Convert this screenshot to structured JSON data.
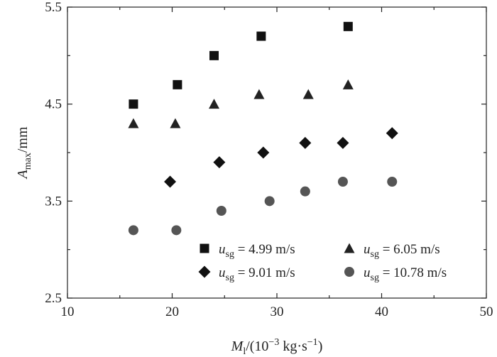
{
  "chart_data": {
    "type": "scatter",
    "title": "",
    "xlabel": {
      "main": "M",
      "sub": "l",
      "unit_open": "/(10",
      "unit_exp": "−3",
      "unit_mid": " kg·s",
      "unit_exp2": "−1",
      "unit_close": ")"
    },
    "ylabel": {
      "main": "A",
      "sub": "max",
      "unit": "/mm"
    },
    "xlim": [
      10,
      50
    ],
    "ylim": [
      2.5,
      5.5
    ],
    "xticks": [
      10,
      20,
      30,
      40,
      50
    ],
    "yticks": [
      2.5,
      3.5,
      4.5,
      5.5
    ],
    "ytick_labels": [
      "2.5",
      "3.5",
      "4.5",
      "5.5"
    ],
    "grid": false,
    "legend_position": "bottom-right",
    "series": [
      {
        "name": "u_sg = 4.99 m/s",
        "legend": {
          "symbol": "u",
          "sub": "sg",
          "value": " = 4.99 m/s"
        },
        "marker": "square",
        "color": "#111111",
        "x": [
          16.3,
          20.5,
          24.0,
          28.5,
          36.8
        ],
        "y": [
          4.5,
          4.7,
          5.0,
          5.2,
          5.3
        ]
      },
      {
        "name": "u_sg = 6.05 m/s",
        "legend": {
          "symbol": "u",
          "sub": "sg",
          "value": " = 6.05 m/s"
        },
        "marker": "triangle",
        "color": "#222222",
        "x": [
          16.3,
          20.3,
          24.0,
          28.3,
          33.0,
          36.8
        ],
        "y": [
          4.3,
          4.3,
          4.5,
          4.6,
          4.6,
          4.7
        ]
      },
      {
        "name": "u_sg = 9.01 m/s",
        "legend": {
          "symbol": "u",
          "sub": "sg",
          "value": " = 9.01 m/s"
        },
        "marker": "diamond",
        "color": "#111111",
        "x": [
          19.8,
          24.5,
          28.7,
          32.7,
          36.3,
          41.0
        ],
        "y": [
          3.7,
          3.9,
          4.0,
          4.1,
          4.1,
          4.2
        ]
      },
      {
        "name": "u_sg = 10.78 m/s",
        "legend": {
          "symbol": "u",
          "sub": "sg",
          "value": " = 10.78 m/s"
        },
        "marker": "circle",
        "color": "#555555",
        "x": [
          16.3,
          20.4,
          24.7,
          29.3,
          32.7,
          36.3,
          41.0
        ],
        "y": [
          3.2,
          3.2,
          3.4,
          3.5,
          3.6,
          3.7,
          3.7
        ]
      }
    ]
  }
}
